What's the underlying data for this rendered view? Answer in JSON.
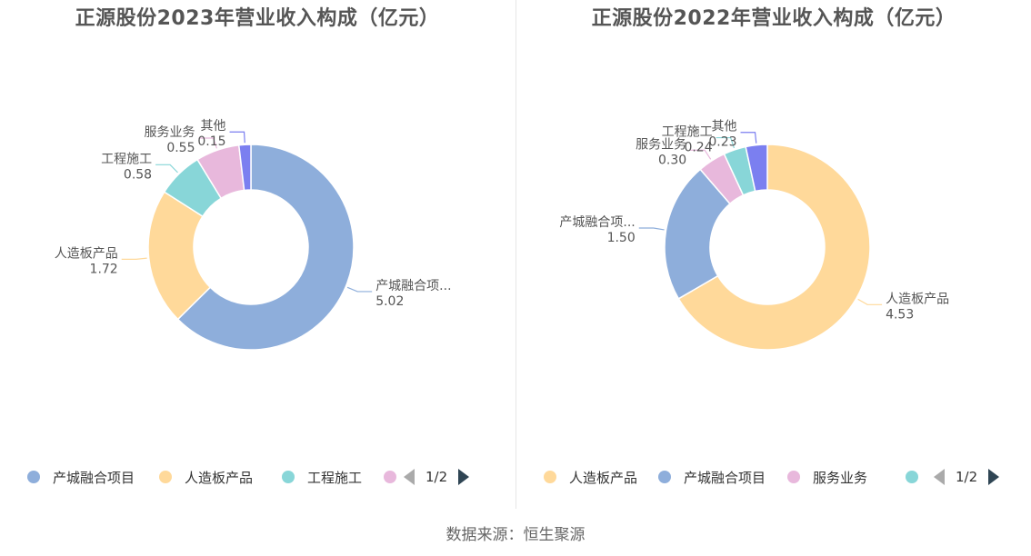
{
  "source": "数据来源：恒生聚源",
  "chart_data": [
    {
      "type": "pie",
      "title": "正源股份2023年营业收入构成（亿元）",
      "slices": [
        {
          "label": "产城融合项目",
          "display_label": "产城融合项...",
          "value": 5.02,
          "value_text": "5.02",
          "color": "#8eaedb"
        },
        {
          "label": "人造板产品",
          "display_label": "人造板产品",
          "value": 1.72,
          "value_text": "1.72",
          "color": "#ffd99a"
        },
        {
          "label": "工程施工",
          "display_label": "工程施工",
          "value": 0.58,
          "value_text": "0.58",
          "color": "#88d6d8"
        },
        {
          "label": "服务业务",
          "display_label": "服务业务",
          "value": 0.55,
          "value_text": "0.55",
          "color": "#e8b8dc"
        },
        {
          "label": "其他",
          "display_label": "其他",
          "value": 0.15,
          "value_text": "0.15",
          "color": "#7b7ff0"
        }
      ],
      "legend": [
        "产城融合项目",
        "人造板产品",
        "工程施工",
        ""
      ],
      "pager": "1/2"
    },
    {
      "type": "pie",
      "title": "正源股份2022年营业收入构成（亿元）",
      "slices": [
        {
          "label": "人造板产品",
          "display_label": "人造板产品",
          "value": 4.53,
          "value_text": "4.53",
          "color": "#ffd99a"
        },
        {
          "label": "产城融合项目",
          "display_label": "产城融合项...",
          "value": 1.5,
          "value_text": "1.50",
          "color": "#8eaedb"
        },
        {
          "label": "服务业务",
          "display_label": "服务业务",
          "value": 0.3,
          "value_text": "0.30",
          "color": "#e8b8dc"
        },
        {
          "label": "工程施工",
          "display_label": "工程施工",
          "value": 0.24,
          "value_text": "0.24",
          "color": "#88d6d8"
        },
        {
          "label": "其他",
          "display_label": "其他",
          "value": 0.23,
          "value_text": "0.23",
          "color": "#7b7ff0"
        }
      ],
      "legend": [
        "人造板产品",
        "产城融合项目",
        "服务业务",
        ""
      ],
      "pager": "1/2"
    }
  ]
}
